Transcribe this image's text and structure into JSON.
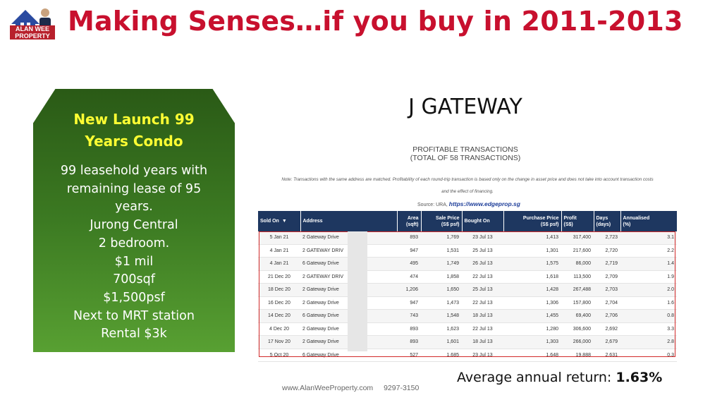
{
  "logo": {
    "text": "ALAN WEE PROPERTY"
  },
  "header": {
    "title": "Making Senses…if you buy in 2011-2013"
  },
  "condo_box": {
    "heading": [
      "New Launch 99",
      "Years Condo"
    ],
    "lines": [
      "99 leasehold years with",
      "remaining lease of 95",
      "years.",
      "Jurong Central",
      "2 bedroom.",
      "$1 mil",
      "700sqf",
      "$1,500psf",
      "Next to MRT station",
      "Rental $3k"
    ]
  },
  "project": {
    "name": "J GATEWAY",
    "table_title": [
      "PROFITABLE TRANSACTIONS",
      "(TOTAL OF 58 TRANSACTIONS)"
    ],
    "note_lines": [
      "Note: Transactions with the same address are matched. Profitability of each round-trip transaction is based only on the change in asset price and does not take into account transaction costs",
      "and the effect of financing."
    ],
    "source_label": "Source: URA,",
    "source_url": "https://www.edgeprop.sg"
  },
  "table": {
    "columns": [
      [
        "Sold On",
        ""
      ],
      [
        "Address",
        ""
      ],
      [
        "Area",
        "(sqft)"
      ],
      [
        "Sale Price",
        "(S$ psf)"
      ],
      [
        "Bought On",
        ""
      ],
      [
        "Purchase Price",
        "(S$ psf)"
      ],
      [
        "Profit",
        "(S$)"
      ],
      [
        "Days",
        "(days)"
      ],
      [
        "Annualised",
        "(%)"
      ]
    ],
    "rows": [
      [
        "5 Jan 21",
        "2 Gateway Drive",
        "893",
        "1,769",
        "23 Jul 13",
        "1,413",
        "317,400",
        "2,723",
        "3.1"
      ],
      [
        "4 Jan 21",
        "2 GATEWAY DRIV",
        "947",
        "1,531",
        "25 Jul 13",
        "1,301",
        "217,600",
        "2,720",
        "2.2"
      ],
      [
        "4 Jan 21",
        "6 Gateway Drive",
        "495",
        "1,749",
        "26 Jul 13",
        "1,575",
        "86,000",
        "2,719",
        "1.4"
      ],
      [
        "21 Dec 20",
        "2 GATEWAY DRIV",
        "474",
        "1,858",
        "22 Jul 13",
        "1,618",
        "113,500",
        "2,709",
        "1.9"
      ],
      [
        "18 Dec 20",
        "2 Gateway Drive",
        "1,206",
        "1,650",
        "25 Jul 13",
        "1,428",
        "267,488",
        "2,703",
        "2.0"
      ],
      [
        "16 Dec 20",
        "2 Gateway Drive",
        "947",
        "1,473",
        "22 Jul 13",
        "1,306",
        "157,800",
        "2,704",
        "1.6"
      ],
      [
        "14 Dec 20",
        "6 Gateway Drive",
        "743",
        "1,548",
        "18 Jul 13",
        "1,455",
        "69,400",
        "2,706",
        "0.8"
      ],
      [
        "4 Dec 20",
        "2 Gateway Drive",
        "893",
        "1,623",
        "22 Jul 13",
        "1,280",
        "306,600",
        "2,692",
        "3.3"
      ],
      [
        "17 Nov 20",
        "2 Gateway Drive",
        "893",
        "1,601",
        "18 Jul 13",
        "1,303",
        "266,000",
        "2,679",
        "2.8"
      ],
      [
        "5 Oct 20",
        "6 Gateway Drive",
        "527",
        "1,685",
        "23 Jul 13",
        "1,648",
        "19,888",
        "2,631",
        "0.3"
      ]
    ]
  },
  "summary": {
    "avg_label": "Average annual return:",
    "avg_value": "1.63%"
  },
  "footer": {
    "website": "www.AlanWeeProperty.com",
    "phone": "9297-3150"
  }
}
